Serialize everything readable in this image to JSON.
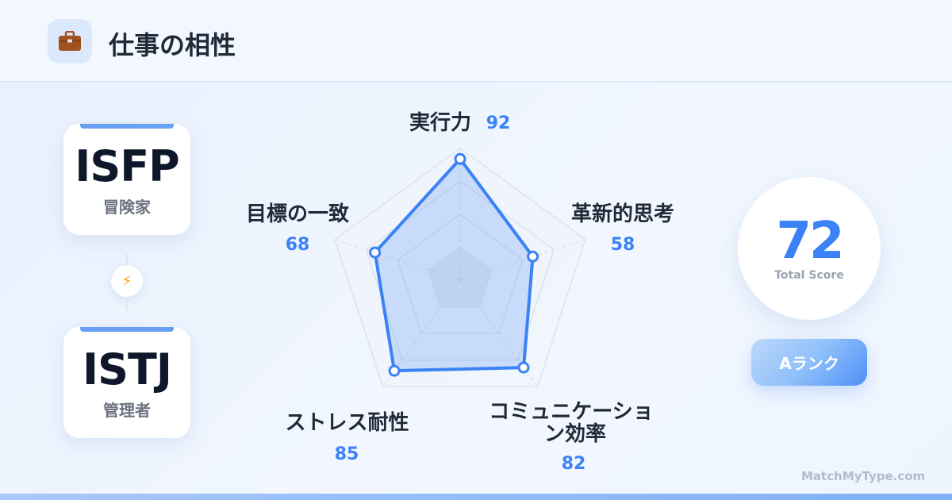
{
  "header": {
    "icon": "briefcase-icon",
    "title": "仕事の相性"
  },
  "types": [
    {
      "code": "ISFP",
      "name": "冒険家"
    },
    {
      "code": "ISTJ",
      "name": "管理者"
    }
  ],
  "connector_icon": "lightning-icon",
  "chart_data": {
    "type": "radar",
    "categories": [
      "実行力",
      "革新的思考",
      "コミュニケーション効率",
      "ストレス耐性",
      "目標の一致"
    ],
    "values": [
      92,
      58,
      82,
      85,
      68
    ],
    "range": [
      0,
      100
    ],
    "grid": true,
    "color": "#3b82f6"
  },
  "labels": {
    "c0": "実行力",
    "c1": "革新的思考",
    "c2a": "コミュニケーショ",
    "c2b": "ン効率",
    "c3": "ストレス耐性",
    "c4": "目標の一致"
  },
  "vals": {
    "v0": "92",
    "v1": "58",
    "v2": "82",
    "v3": "85",
    "v4": "68"
  },
  "score": {
    "value": "72",
    "label": "Total Score"
  },
  "rank": "Aランク",
  "brand": "MatchMyType.com"
}
